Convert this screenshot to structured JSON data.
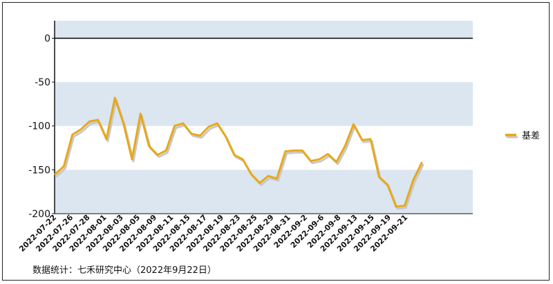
{
  "chart_data": {
    "type": "line",
    "title": "",
    "xlabel": "",
    "ylabel": "",
    "ylim": [
      -200,
      20
    ],
    "yticks": [
      0,
      -50,
      -100,
      -150,
      -200
    ],
    "grid": "alternating horizontal bands",
    "legend_position": "right",
    "colors": {
      "line": "#e8a818",
      "shadow": "#c8c8c8",
      "band": "#dce6f1",
      "zero_line": "#000000"
    },
    "x_tick_labels": [
      "2022-07-22",
      "2022-07-26",
      "2022-07-28",
      "2022-08-01",
      "2022-08-03",
      "2022-08-05",
      "2022-08-09",
      "2022-08-11",
      "2022-08-15",
      "2022-08-17",
      "2022-08-19",
      "2022-08-23",
      "2022-08-25",
      "2022-08-29",
      "2022-08-31",
      "2022-09-2",
      "2022-09-6",
      "2022-09-8",
      "2022-09-13",
      "2022-09-15",
      "2022-09-19",
      "2022-09-21"
    ],
    "series": [
      {
        "name": "基差",
        "values": [
          -155,
          -146,
          -110,
          -104,
          -95,
          -93,
          -115,
          -68,
          -97,
          -138,
          -86,
          -123,
          -133,
          -128,
          -100,
          -97,
          -109,
          -111,
          -101,
          -97,
          -112,
          -133,
          -138,
          -155,
          -165,
          -157,
          -160,
          -129,
          -128,
          -128,
          -140,
          -138,
          -132,
          -141,
          -123,
          -98,
          -116,
          -115,
          -158,
          -167,
          -192,
          -191,
          -162,
          -142
        ]
      }
    ]
  },
  "source": "数据统计：七禾研究中心（2022年9月22日）"
}
